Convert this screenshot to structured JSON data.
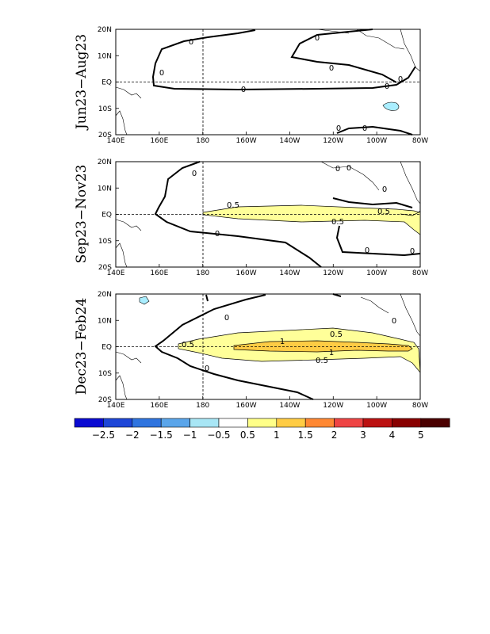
{
  "panels": [
    {
      "label": "Jun23−Aug23",
      "contour_labels": [
        "0",
        "0",
        "0",
        "0",
        "0",
        "0",
        "0",
        "0",
        "0"
      ]
    },
    {
      "label": "Sep23−Nov23",
      "contour_labels": [
        "0",
        "0",
        "0",
        "0",
        "0",
        "0",
        "0",
        "0.5",
        "0.5",
        "0.5"
      ]
    },
    {
      "label": "Dec23−Feb24",
      "contour_labels": [
        "0",
        "0",
        "0",
        "0.5",
        "0.5",
        "0.5",
        "1",
        "1"
      ]
    }
  ],
  "axes": {
    "lon_ticks": [
      "140E",
      "160E",
      "180",
      "160W",
      "140W",
      "120W",
      "100W",
      "80W"
    ],
    "lat_ticks": [
      "20N",
      "10N",
      "EQ",
      "10S",
      "20S"
    ]
  },
  "colorbar": {
    "labels": [
      "−2.5",
      "−2",
      "−1.5",
      "−1",
      "−0.5",
      "0.5",
      "1",
      "1.5",
      "2",
      "3",
      "4",
      "5"
    ],
    "colors": [
      "#0a0ad2",
      "#1e46d7",
      "#2f74df",
      "#5aa5ea",
      "#a8e6f5",
      "#ffffff",
      "#ffff88",
      "#ffcc44",
      "#ff8833",
      "#ee4444",
      "#bb1111",
      "#880000",
      "#4a0000"
    ]
  },
  "map_colors": {
    "positive_05": "#ffff99",
    "positive_1": "#ffcc44",
    "negative_05": "#aaeeff"
  }
}
